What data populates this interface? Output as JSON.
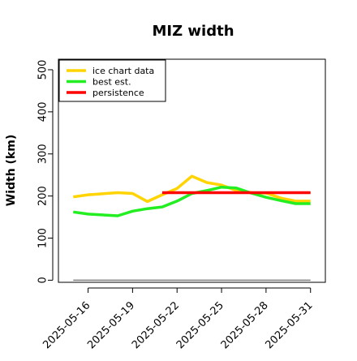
{
  "chart_data": {
    "type": "line",
    "title": "MIZ width",
    "ylabel": "Width (km)",
    "xlabel": "",
    "xlim": [
      "2025-05-14",
      "2025-06-01"
    ],
    "ylim": [
      -5,
      525
    ],
    "y_ticks": [
      0,
      100,
      200,
      300,
      400,
      500
    ],
    "x_ticks": [
      "2025-05-16",
      "2025-05-19",
      "2025-05-22",
      "2025-05-25",
      "2025-05-28",
      "2025-05-31"
    ],
    "legend_position": "top-left",
    "grid": false,
    "series": [
      {
        "name": "ice chart data",
        "color": "#FFD400",
        "points": [
          {
            "x": "2025-05-15",
            "y": 198
          },
          {
            "x": "2025-05-16",
            "y": 203
          },
          {
            "x": "2025-05-18",
            "y": 208
          },
          {
            "x": "2025-05-19",
            "y": 206
          },
          {
            "x": "2025-05-20",
            "y": 187
          },
          {
            "x": "2025-05-21",
            "y": 203
          },
          {
            "x": "2025-05-22",
            "y": 218
          },
          {
            "x": "2025-05-23",
            "y": 247
          },
          {
            "x": "2025-05-24",
            "y": 232
          },
          {
            "x": "2025-05-25",
            "y": 226
          },
          {
            "x": "2025-05-26",
            "y": 213
          },
          {
            "x": "2025-05-27",
            "y": 208
          },
          {
            "x": "2025-05-28",
            "y": 207
          },
          {
            "x": "2025-05-29",
            "y": 195
          },
          {
            "x": "2025-05-30",
            "y": 188
          },
          {
            "x": "2025-05-31",
            "y": 188
          }
        ]
      },
      {
        "name": "best est.",
        "color": "#22EE22",
        "points": [
          {
            "x": "2025-05-15",
            "y": 162
          },
          {
            "x": "2025-05-16",
            "y": 157
          },
          {
            "x": "2025-05-18",
            "y": 153
          },
          {
            "x": "2025-05-19",
            "y": 164
          },
          {
            "x": "2025-05-20",
            "y": 170
          },
          {
            "x": "2025-05-21",
            "y": 174
          },
          {
            "x": "2025-05-22",
            "y": 188
          },
          {
            "x": "2025-05-23",
            "y": 206
          },
          {
            "x": "2025-05-24",
            "y": 213
          },
          {
            "x": "2025-05-25",
            "y": 221
          },
          {
            "x": "2025-05-26",
            "y": 219
          },
          {
            "x": "2025-05-27",
            "y": 207
          },
          {
            "x": "2025-05-28",
            "y": 197
          },
          {
            "x": "2025-05-29",
            "y": 189
          },
          {
            "x": "2025-05-30",
            "y": 182
          },
          {
            "x": "2025-05-31",
            "y": 182
          }
        ]
      },
      {
        "name": "persistence",
        "color": "#FF0000",
        "points": [
          {
            "x": "2025-05-21",
            "y": 208
          },
          {
            "x": "2025-05-31",
            "y": 208
          }
        ]
      }
    ],
    "baseline": {
      "y": 0,
      "from": "2025-05-15",
      "to": "2025-05-31",
      "color": "#808080"
    }
  }
}
